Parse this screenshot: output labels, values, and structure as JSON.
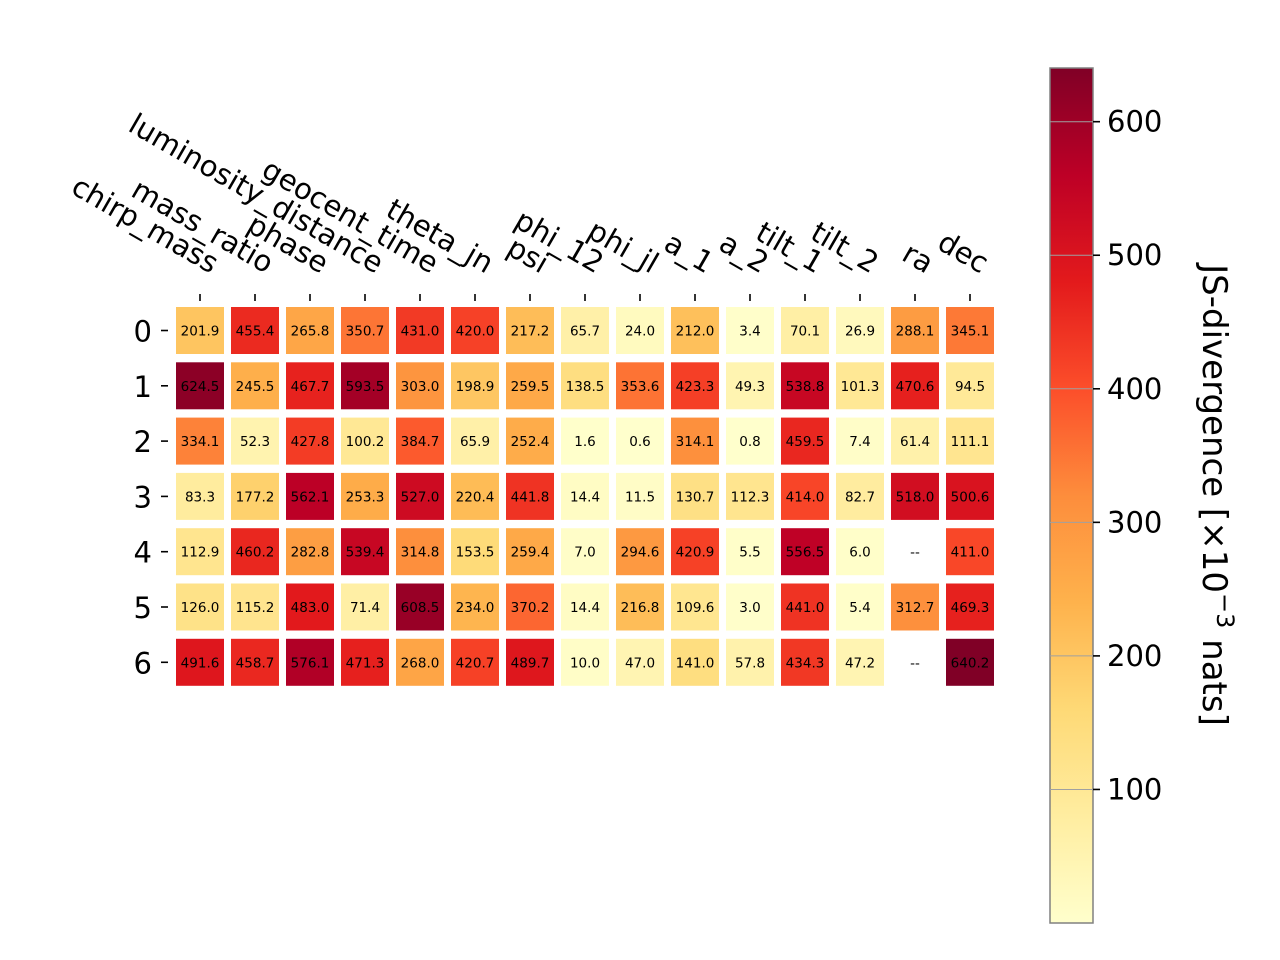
{
  "chart_data": {
    "type": "heatmap",
    "x_categories": [
      "chirp_mass",
      "mass_ratio",
      "phase",
      "luminosity_distance",
      "geocent_time",
      "theta_jn",
      "psi",
      "phi_12",
      "phi_jl",
      "a_1",
      "a_2",
      "tilt_1",
      "tilt_2",
      "ra",
      "dec"
    ],
    "y_categories": [
      "0",
      "1",
      "2",
      "3",
      "4",
      "5",
      "6"
    ],
    "values": [
      [
        201.9,
        455.4,
        265.8,
        350.7,
        431.0,
        420.0,
        217.2,
        65.7,
        24.0,
        212.0,
        3.4,
        70.1,
        26.9,
        288.1,
        345.1
      ],
      [
        624.5,
        245.5,
        467.7,
        593.5,
        303.0,
        198.9,
        259.5,
        138.5,
        353.6,
        423.3,
        49.3,
        538.8,
        101.3,
        470.6,
        94.5
      ],
      [
        334.1,
        52.3,
        427.8,
        100.2,
        384.7,
        65.9,
        252.4,
        1.6,
        0.6,
        314.1,
        0.8,
        459.5,
        7.4,
        61.4,
        111.1
      ],
      [
        83.3,
        177.2,
        562.1,
        253.3,
        527.0,
        220.4,
        441.8,
        14.4,
        11.5,
        130.7,
        112.3,
        414.0,
        82.7,
        518.0,
        500.6
      ],
      [
        112.9,
        460.2,
        282.8,
        539.4,
        314.8,
        153.5,
        259.4,
        7.0,
        294.6,
        420.9,
        5.5,
        556.5,
        6.0,
        null,
        411.0
      ],
      [
        126.0,
        115.2,
        483.0,
        71.4,
        608.5,
        234.0,
        370.2,
        14.4,
        216.8,
        109.6,
        3.0,
        441.0,
        5.4,
        312.7,
        469.3
      ],
      [
        491.6,
        458.7,
        576.1,
        471.3,
        268.0,
        420.7,
        489.7,
        10.0,
        47.0,
        141.0,
        57.8,
        434.3,
        47.2,
        null,
        640.2
      ]
    ],
    "missing_label": "--",
    "colormap": "YlOrRd",
    "colorbar": {
      "label": "JS-divergence [×10",
      "label_exp": "−3",
      "label_tail": " nats]",
      "range": [
        0,
        640.2
      ],
      "ticks": [
        100,
        200,
        300,
        400,
        500,
        600
      ]
    },
    "colors": {
      "cmap_stops": [
        "#ffffcc",
        "#ffeda0",
        "#fed976",
        "#feb24c",
        "#fd8d3c",
        "#fc4e2a",
        "#e31a1c",
        "#bd0026",
        "#800026"
      ],
      "light_text": "#ffffff",
      "dark_text": "#000000"
    }
  }
}
